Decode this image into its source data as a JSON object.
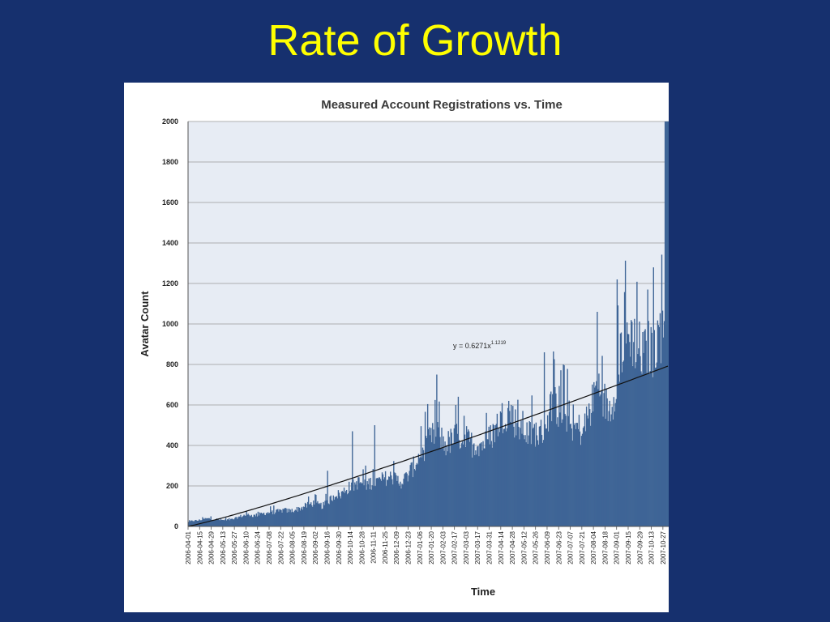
{
  "slide": {
    "title": "Rate of Growth"
  },
  "chart_data": {
    "type": "bar",
    "title": "Measured Account Registrations vs. Time",
    "xlabel": "Time",
    "ylabel": "Avatar Count",
    "ylim": [
      0,
      2000
    ],
    "yticks": [
      "0",
      "200",
      "400",
      "600",
      "800",
      "1000",
      "1200",
      "1400",
      "1600",
      "1800",
      "2000"
    ],
    "grid": true,
    "x_start": "2006-04-01",
    "x_end": "2007-11-03",
    "x_ticks": [
      "2006-04-01",
      "2006-04-15",
      "2006-04-29",
      "2006-05-13",
      "2006-05-27",
      "2006-06-10",
      "2006-06-24",
      "2006-07-08",
      "2006-07-22",
      "2006-08-05",
      "2006-08-19",
      "2006-09-02",
      "2006-09-16",
      "2006-09-30",
      "2006-10-14",
      "2006-10-28",
      "2006-11-11",
      "2006-11-25",
      "2006-12-09",
      "2006-12-23",
      "2007-01-06",
      "2007-01-20",
      "2007-02-03",
      "2007-02-17",
      "2007-03-03",
      "2007-03-17",
      "2007-03-31",
      "2007-04-14",
      "2007-04-28",
      "2007-05-12",
      "2007-05-26",
      "2007-06-09",
      "2007-06-23",
      "2007-07-07",
      "2007-07-21",
      "2007-08-04",
      "2007-08-18",
      "2007-09-01",
      "2007-09-15",
      "2007-09-29",
      "2007-10-13",
      "2007-10-27"
    ],
    "series": [
      {
        "values": [
          22,
          30,
          30,
          35,
          40,
          40,
          38,
          35,
          32,
          35,
          35,
          42,
          52,
          58,
          60,
          55,
          60,
          65,
          70,
          72,
          75,
          78,
          85,
          80,
          82,
          88,
          95,
          105,
          115,
          120,
          110,
          105,
          125,
          145,
          170,
          160,
          185,
          200,
          210,
          225,
          225,
          215,
          225,
          230,
          232,
          245,
          250,
          255,
          240,
          230,
          245,
          275,
          310,
          355,
          380,
          430,
          450,
          480,
          470,
          420,
          430,
          445,
          470,
          460,
          450,
          430,
          420,
          430,
          425,
          440,
          470,
          510,
          550,
          580,
          600,
          560,
          500,
          520,
          480,
          470,
          490,
          470,
          500,
          560,
          650,
          620,
          560,
          600,
          520,
          500,
          510,
          480,
          560,
          610,
          720,
          720,
          650,
          600,
          650,
          800,
          920,
          960,
          1000,
          950,
          920,
          870,
          920,
          900,
          960,
          1000,
          1050,
          2000
        ],
        "color": "#3f6596",
        "spikes": [
          [
            "2006-09-16",
            275
          ],
          [
            "2006-10-16",
            470
          ],
          [
            "2006-11-12",
            500
          ],
          [
            "2007-01-26",
            750
          ],
          [
            "2007-02-18",
            600
          ],
          [
            "2007-06-05",
            860
          ],
          [
            "2007-06-28",
            800
          ],
          [
            "2007-08-08",
            1060
          ],
          [
            "2007-09-01",
            1220
          ],
          [
            "2007-10-08",
            1170
          ]
        ]
      }
    ],
    "trendline": {
      "equation": "y = 0.6271x",
      "exponent": "1.1219",
      "coefficient": 0.6271,
      "power": 1.1219,
      "color": "#111111"
    },
    "colors": {
      "plot_background": "#e7ecf4",
      "gridline": "#9a9a9a",
      "bars": "#3f6596"
    }
  }
}
